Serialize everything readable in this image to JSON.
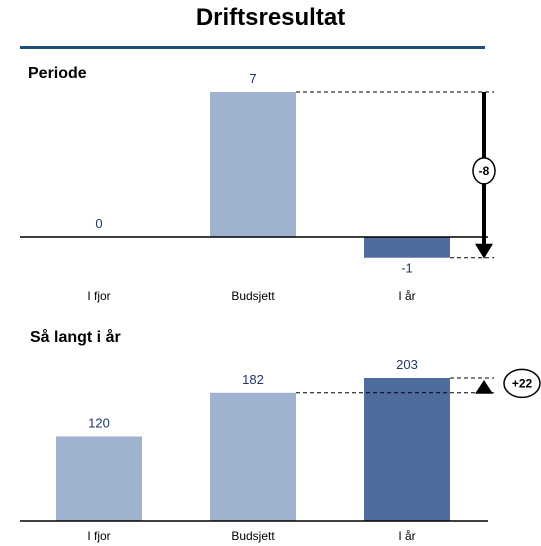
{
  "header": {
    "title": "Driftsresultat"
  },
  "colors": {
    "rule": "#1f4e79",
    "light_bar": "#9fb3d1",
    "dark_bar": "#4f6d9c",
    "label": "#1f3864"
  },
  "chart_data": [
    {
      "type": "bar",
      "title": "Periode",
      "categories": [
        "I fjor",
        "Budsjett",
        "I år"
      ],
      "values": [
        0,
        7,
        -1
      ],
      "value_labels": [
        "0",
        "7",
        "-1"
      ],
      "highlight": "I år",
      "variance": {
        "label": "-8",
        "from": "Budsjett",
        "to": "I år",
        "direction": "down"
      }
    },
    {
      "type": "bar",
      "title": "Så langt i år",
      "categories": [
        "I fjor",
        "Budsjett",
        "I år"
      ],
      "values": [
        120,
        182,
        203
      ],
      "value_labels": [
        "120",
        "182",
        "203"
      ],
      "highlight": "I år",
      "variance": {
        "label": "+22",
        "from": "Budsjett",
        "to": "I år",
        "direction": "up"
      }
    }
  ]
}
